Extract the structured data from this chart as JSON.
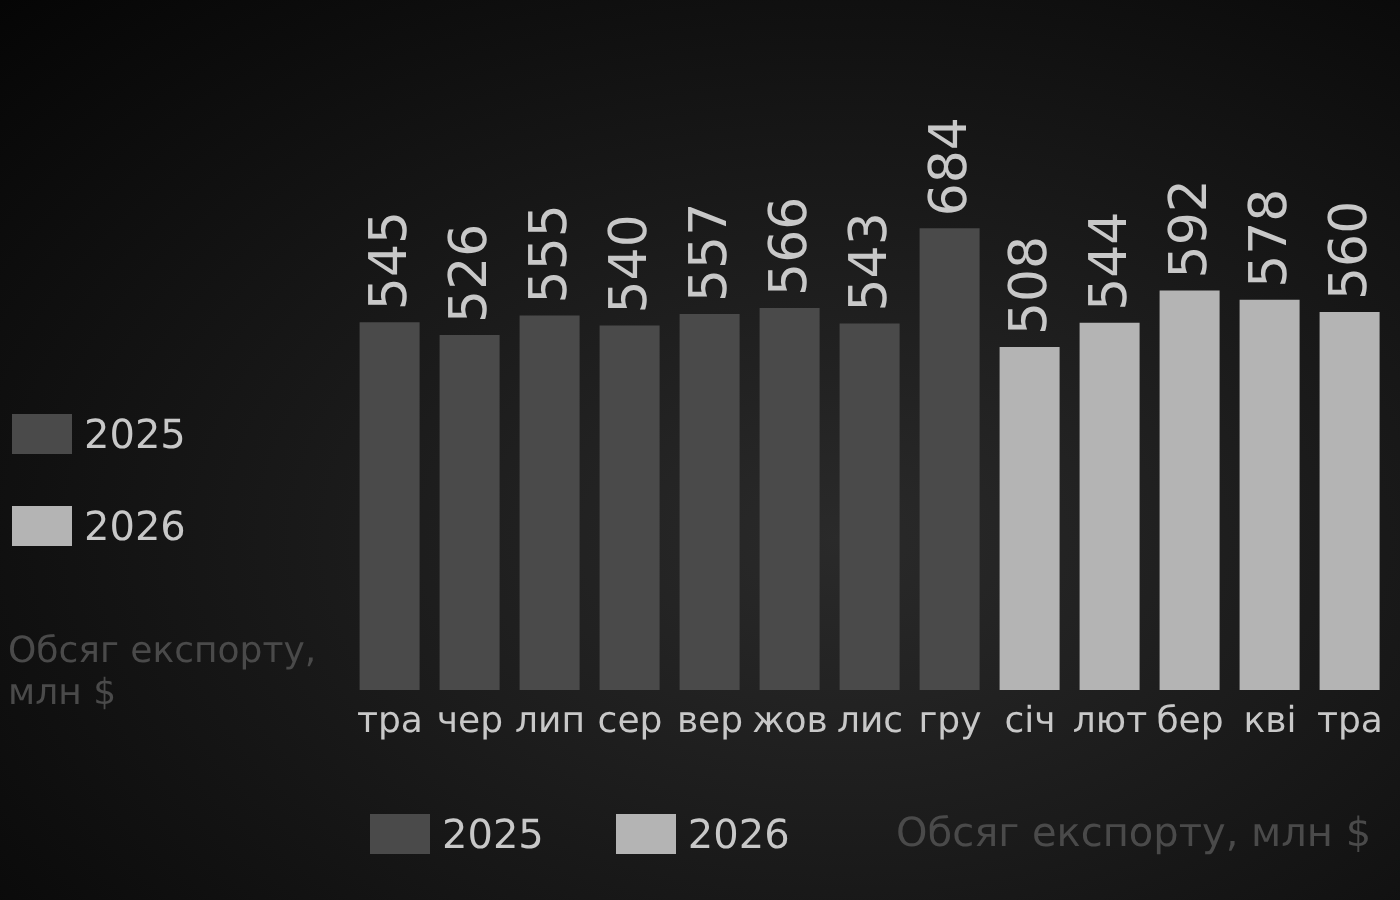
{
  "chart_data": {
    "type": "bar",
    "categories": [
      "тра",
      "чер",
      "лип",
      "сер",
      "вер",
      "жов",
      "лис",
      "гру",
      "січ",
      "лют",
      "бер",
      "кві",
      "тра"
    ],
    "series": [
      {
        "name": "2025",
        "color": "#4a4a4a",
        "values": [
          545,
          526,
          555,
          540,
          557,
          566,
          543,
          684,
          null,
          null,
          null,
          null,
          null
        ]
      },
      {
        "name": "2026",
        "color": "#b4b4b4",
        "values": [
          null,
          null,
          null,
          null,
          null,
          null,
          null,
          null,
          508,
          544,
          592,
          578,
          560
        ]
      }
    ],
    "stacked": true,
    "data_labels": true,
    "tick_labels": "x",
    "grid": false,
    "legend": "bottom",
    "annotations": [
      "Обсяг експорту, млн $",
      "Обсяг експорту, млн $"
    ]
  }
}
